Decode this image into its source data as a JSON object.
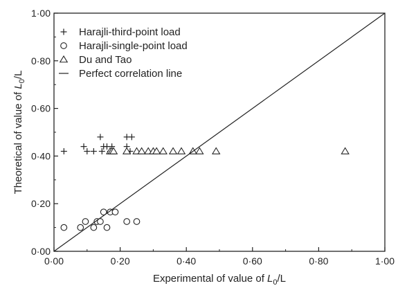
{
  "chart_data": {
    "type": "scatter",
    "xlabel": "Experimental of value of L0/L",
    "ylabel": "Theoretical of value of L0/L",
    "xlabel_parts": {
      "pre": "Experimental of value of ",
      "L": "L",
      "sub": "0",
      "post": "/L"
    },
    "ylabel_parts": {
      "pre": "Theoretical of value of ",
      "L": "L",
      "sub": "0",
      "post": "/L"
    },
    "xlim": [
      0,
      1
    ],
    "ylim": [
      0,
      1
    ],
    "x_ticks": [
      "0·00",
      "0·20",
      "0·40",
      "0·60",
      "0·80",
      "1·00"
    ],
    "y_ticks": [
      "0·00",
      "0·20",
      "0·40",
      "0·60",
      "0·80",
      "1·00"
    ],
    "grid": false,
    "legend_position": "top-left",
    "series": [
      {
        "name": "Harajli-third-point load",
        "marker": "plus",
        "points": [
          [
            0.03,
            0.42
          ],
          [
            0.09,
            0.44
          ],
          [
            0.1,
            0.42
          ],
          [
            0.12,
            0.42
          ],
          [
            0.14,
            0.48
          ],
          [
            0.145,
            0.42
          ],
          [
            0.15,
            0.44
          ],
          [
            0.16,
            0.44
          ],
          [
            0.17,
            0.42
          ],
          [
            0.175,
            0.44
          ],
          [
            0.22,
            0.48
          ],
          [
            0.22,
            0.44
          ],
          [
            0.23,
            0.42
          ],
          [
            0.235,
            0.48
          ]
        ]
      },
      {
        "name": "Harajli-single-point load",
        "marker": "circle",
        "points": [
          [
            0.03,
            0.1
          ],
          [
            0.08,
            0.1
          ],
          [
            0.095,
            0.125
          ],
          [
            0.12,
            0.1
          ],
          [
            0.13,
            0.125
          ],
          [
            0.14,
            0.125
          ],
          [
            0.15,
            0.165
          ],
          [
            0.16,
            0.1
          ],
          [
            0.17,
            0.165
          ],
          [
            0.185,
            0.165
          ],
          [
            0.22,
            0.125
          ],
          [
            0.25,
            0.125
          ]
        ]
      },
      {
        "name": "Du and Tao",
        "marker": "triangle",
        "points": [
          [
            0.17,
            0.42
          ],
          [
            0.175,
            0.42
          ],
          [
            0.18,
            0.42
          ],
          [
            0.22,
            0.42
          ],
          [
            0.25,
            0.42
          ],
          [
            0.265,
            0.42
          ],
          [
            0.285,
            0.42
          ],
          [
            0.3,
            0.42
          ],
          [
            0.31,
            0.42
          ],
          [
            0.33,
            0.42
          ],
          [
            0.36,
            0.42
          ],
          [
            0.385,
            0.42
          ],
          [
            0.42,
            0.42
          ],
          [
            0.44,
            0.42
          ],
          [
            0.49,
            0.42
          ],
          [
            0.88,
            0.42
          ]
        ]
      },
      {
        "name": "Perfect correlation line",
        "marker": "line",
        "points": [
          [
            0,
            0
          ],
          [
            1,
            1
          ]
        ]
      }
    ]
  }
}
